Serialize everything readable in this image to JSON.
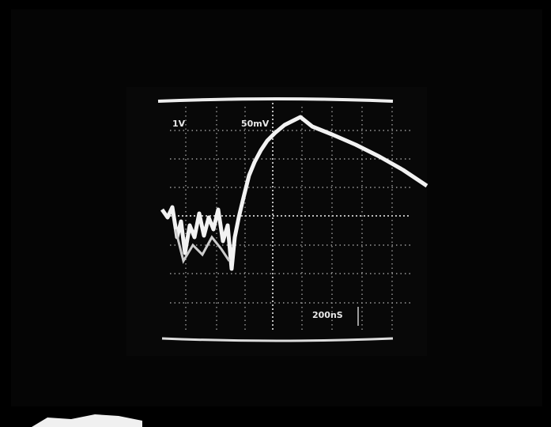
{
  "screen": {
    "labels": {
      "channel_1": "1V",
      "channel_2": "50mV",
      "timebase": "200nS"
    }
  }
}
